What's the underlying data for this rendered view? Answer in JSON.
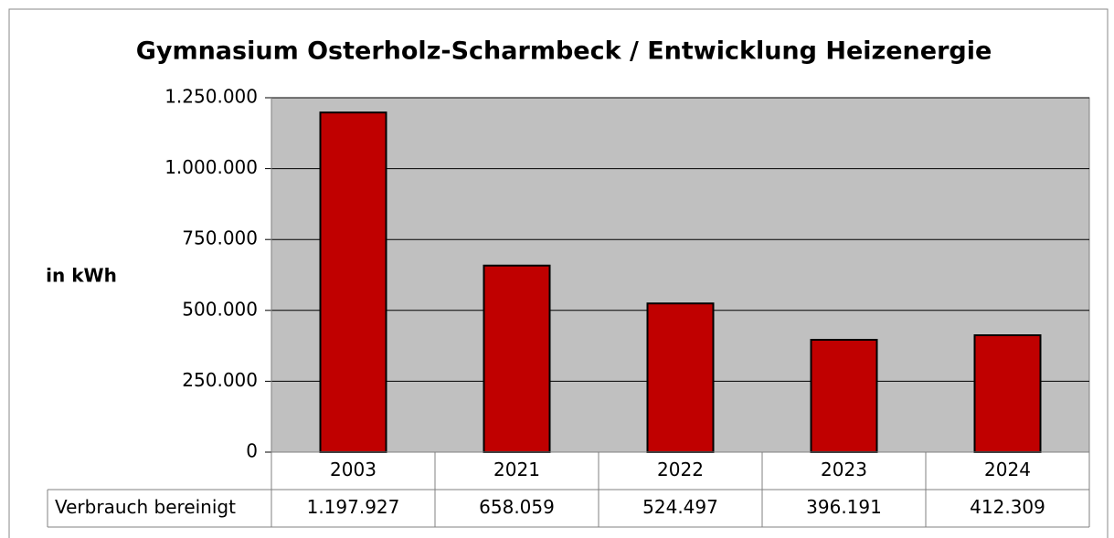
{
  "chart_data": {
    "type": "bar",
    "title": "Gymnasium Osterholz-Scharmbeck / Entwicklung Heizenergie",
    "ylabel": "in kWh",
    "categories": [
      "2003",
      "2021",
      "2022",
      "2023",
      "2024"
    ],
    "series": [
      {
        "name": "Verbrauch bereinigt",
        "color": "#c00000",
        "values": [
          1197927,
          658059,
          524497,
          396191,
          412309
        ],
        "value_labels": [
          "1.197.927",
          "658.059",
          "524.497",
          "396.191",
          "412.309"
        ]
      }
    ],
    "ylim": [
      0,
      1250000
    ],
    "yticks": [
      0,
      {
        "value": 250000,
        "label": "250.000"
      },
      {
        "value": 500000,
        "label": "500.000"
      },
      {
        "value": 750000,
        "label": "750.000"
      },
      {
        "value": 1000000,
        "label": "1.000.000"
      },
      {
        "value": 1250000,
        "label": "1.250.000"
      }
    ],
    "grid": true,
    "plot_background": "#c0c0c0"
  }
}
